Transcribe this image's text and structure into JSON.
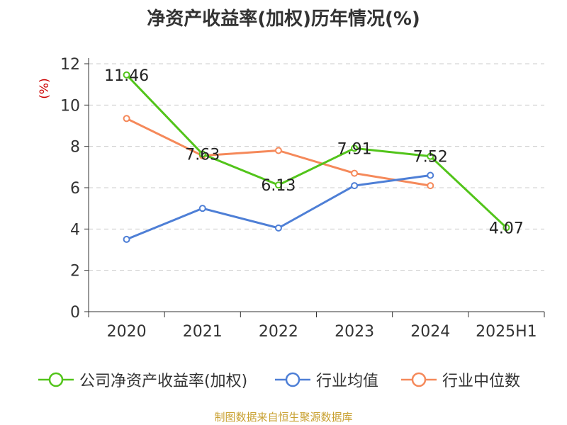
{
  "chart_data": {
    "type": "line",
    "title": "净资产收益率(加权)历年情况(%)",
    "ylabel": "(%)",
    "xlabel": "",
    "ylim": [
      0,
      12
    ],
    "yticks": [
      0,
      2,
      4,
      6,
      8,
      10,
      12
    ],
    "grid": true,
    "legend_position": "bottom",
    "categories": [
      "2020",
      "2021",
      "2022",
      "2023",
      "2024",
      "2025H1"
    ],
    "series": [
      {
        "name": "公司净资产收益率(加权)",
        "color": "#52c41a",
        "values": [
          11.46,
          7.63,
          6.13,
          7.91,
          7.52,
          4.07
        ],
        "labels": [
          "11.46",
          "7.63",
          "6.13",
          "7.91",
          "7.52",
          "4.07"
        ]
      },
      {
        "name": "行业均值",
        "color": "#4e7fd6",
        "values": [
          3.5,
          5.0,
          4.05,
          6.1,
          6.6,
          null
        ]
      },
      {
        "name": "行业中位数",
        "color": "#f5895a",
        "values": [
          9.35,
          7.55,
          7.8,
          6.7,
          6.1,
          null
        ]
      }
    ],
    "source": "制图数据来自恒生聚源数据库",
    "source_color": "#c8a030"
  }
}
